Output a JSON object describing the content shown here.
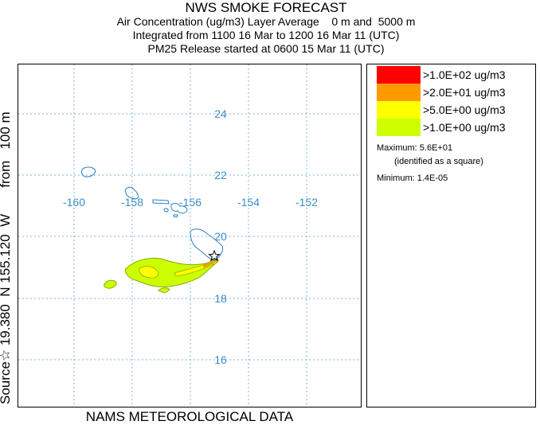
{
  "header": {
    "title": "NWS SMOKE FORECAST",
    "line2": "Air Concentration (ug/m3) Layer Average    0 m and  5000 m",
    "line3": "Integrated from 1100 16 Mar to 1200 16 Mar 11 (UTC)",
    "line4": "PM25 Release started at 0600 15 Mar 11 (UTC)"
  },
  "side_label": "Source☆ 19.380  N 155.120  W       from   100 m",
  "bottom_label": "NAMS METEOROLOGICAL DATA",
  "map": {
    "lon_ticks": [
      "-160",
      "-158",
      "-156",
      "-154",
      "-152"
    ],
    "lat_ticks": [
      "24",
      "22",
      "20",
      "18",
      "16"
    ],
    "grid_color": "#7ab6dc",
    "coast_color": "#2a7fc0"
  },
  "legend": {
    "items": [
      {
        "label": ">1.0E+02 ug/m3",
        "color": "#ff0000"
      },
      {
        "label": ">2.0E+01 ug/m3",
        "color": "#ff9900"
      },
      {
        "label": ">5.0E+00 ug/m3",
        "color": "#ffff00"
      },
      {
        "label": ">1.0E+00 ug/m3",
        "color": "#ccff00"
      }
    ],
    "maximum_label": "Maximum:",
    "maximum_value": "5.6E+01",
    "maximum_note": "(identified as a square)",
    "minimum_label": "Minimum:",
    "minimum_value": "1.4E-05"
  }
}
